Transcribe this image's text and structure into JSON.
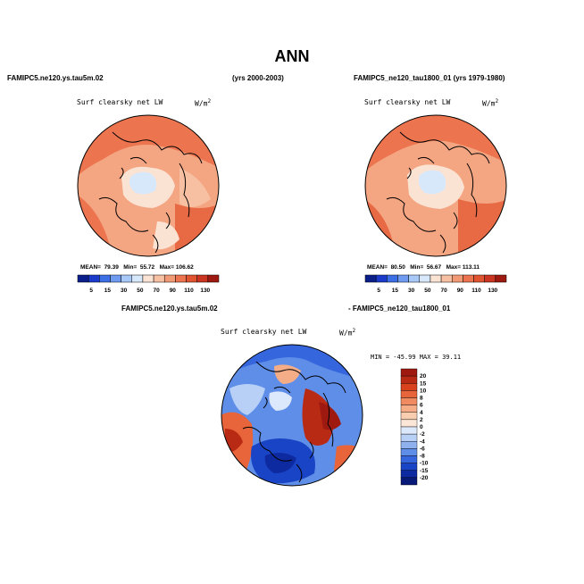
{
  "title": "ANN",
  "top_left": {
    "case": "FAMIPC5.ne120.ys.tau5m.02",
    "years": "(yrs 2000-2003)",
    "variable": "Surf clearsky net LW",
    "units": "W/m",
    "units_exp": "2",
    "mean_label": "MEAN=",
    "mean_value": "79.39",
    "min_label": "Min=",
    "min_value": "55.72",
    "max_label": "Max=",
    "max_value": "106.62"
  },
  "top_right": {
    "case": "FAMIPC5_ne120_tau1800_01 (yrs 1979-1980)",
    "variable": "Surf clearsky net LW",
    "units": "W/m",
    "units_exp": "2",
    "mean_label": "MEAN=",
    "mean_value": "80.50",
    "min_label": "Min=",
    "min_value": "56.67",
    "max_label": "Max=",
    "max_value": "113.11"
  },
  "diff": {
    "case_a": "FAMIPC5.ne120.ys.tau5m.02",
    "case_b": "- FAMIPC5_ne120_tau1800_01",
    "variable": "Surf clearsky net LW",
    "units": "W/m",
    "units_exp": "2",
    "minmax": "MIN = -45.99  MAX =  39.11"
  },
  "colors": {
    "abs_scale": [
      "#0a1f8a",
      "#1a3bc9",
      "#3c6ee6",
      "#6e9bf0",
      "#a8c8f7",
      "#d8e8fb",
      "#fbe3d4",
      "#f7c0a2",
      "#f29a76",
      "#ec7550",
      "#e05430",
      "#c93520",
      "#9e1a10"
    ],
    "diff_scale": [
      "#9e1a10",
      "#b92a14",
      "#d8421c",
      "#e8643a",
      "#f08a60",
      "#f5ad88",
      "#f9cdb0",
      "#fce6d8",
      "#dce8fb",
      "#b8d0f5",
      "#8fb2ef",
      "#5f8ee8",
      "#3566dd",
      "#1a44c6",
      "#0e2aa0",
      "#081a78"
    ]
  },
  "chart_data": [
    {
      "type": "heatmap",
      "panel": "top-left",
      "projection": "north-polar-stereographic",
      "title": "Surf clearsky net LW",
      "colorbar_ticks": [
        "5",
        "15",
        "30",
        "50",
        "70",
        "90",
        "110",
        "130"
      ],
      "colorbar_orientation": "horizontal",
      "stats": {
        "mean": 79.39,
        "min": 55.72,
        "max": 106.62
      }
    },
    {
      "type": "heatmap",
      "panel": "top-right",
      "projection": "north-polar-stereographic",
      "title": "Surf clearsky net LW",
      "colorbar_ticks": [
        "5",
        "15",
        "30",
        "50",
        "70",
        "90",
        "110",
        "130"
      ],
      "colorbar_orientation": "horizontal",
      "stats": {
        "mean": 80.5,
        "min": 56.67,
        "max": 113.11
      }
    },
    {
      "type": "heatmap",
      "panel": "bottom-difference",
      "projection": "north-polar-stereographic",
      "title": "Surf clearsky net LW",
      "colorbar_ticks": [
        "20",
        "15",
        "10",
        "8",
        "6",
        "4",
        "2",
        "0",
        "-2",
        "-4",
        "-6",
        "-8",
        "-10",
        "-15",
        "-20"
      ],
      "colorbar_orientation": "vertical",
      "stats": {
        "min": -45.99,
        "max": 39.11
      }
    }
  ]
}
